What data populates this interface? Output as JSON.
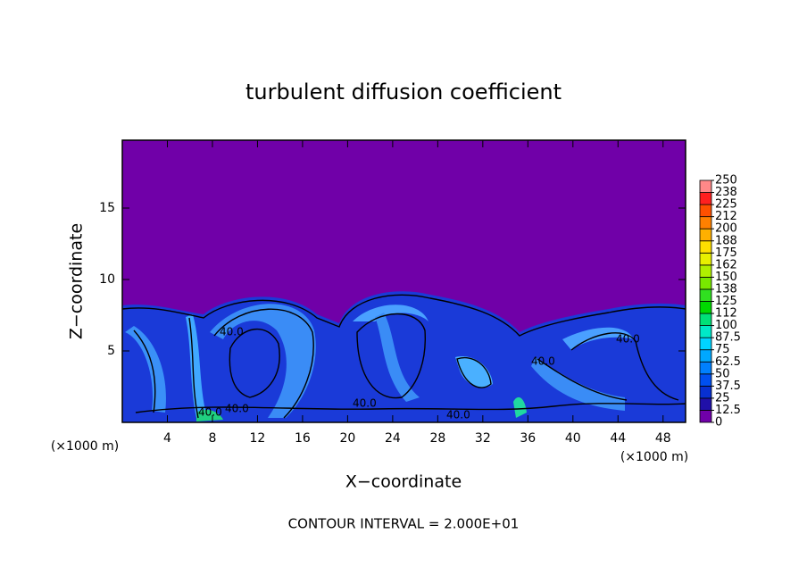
{
  "chart_data": {
    "type": "contour",
    "title": "turbulent diffusion coefficient",
    "xlabel": "X−coordinate",
    "ylabel": "Z−coordinate",
    "units": [
      "(×1000 m)",
      "(×1000 m)"
    ],
    "footer": "CONTOUR INTERVAL = 2.000E+01",
    "xlim": [
      0,
      50
    ],
    "xticks": [
      4,
      8,
      12,
      16,
      20,
      24,
      28,
      32,
      36,
      40,
      44,
      48
    ],
    "ylim": [
      0,
      19.75
    ],
    "yticks": [
      5,
      10,
      15
    ],
    "contour_labels": [
      "40.0",
      "40.0",
      "40.0",
      "40.0",
      "40.0",
      "40.0",
      "40.0"
    ],
    "colorbar": {
      "ticks": [
        0,
        12.5,
        25,
        37.5,
        50,
        62.5,
        75,
        87.5,
        100,
        112,
        125,
        138,
        150,
        162,
        175,
        188,
        200,
        212,
        225,
        238,
        250
      ],
      "colors": [
        "#7000a8",
        "#2010a8",
        "#0830d0",
        "#0050f0",
        "#0080ff",
        "#00a8ff",
        "#00d4ff",
        "#00e8c8",
        "#00e078",
        "#00d800",
        "#30e020",
        "#78e800",
        "#b0f000",
        "#e8f000",
        "#ffe000",
        "#ffb000",
        "#ff8000",
        "#ff5000",
        "#ff2020",
        "#ff8888"
      ]
    }
  }
}
